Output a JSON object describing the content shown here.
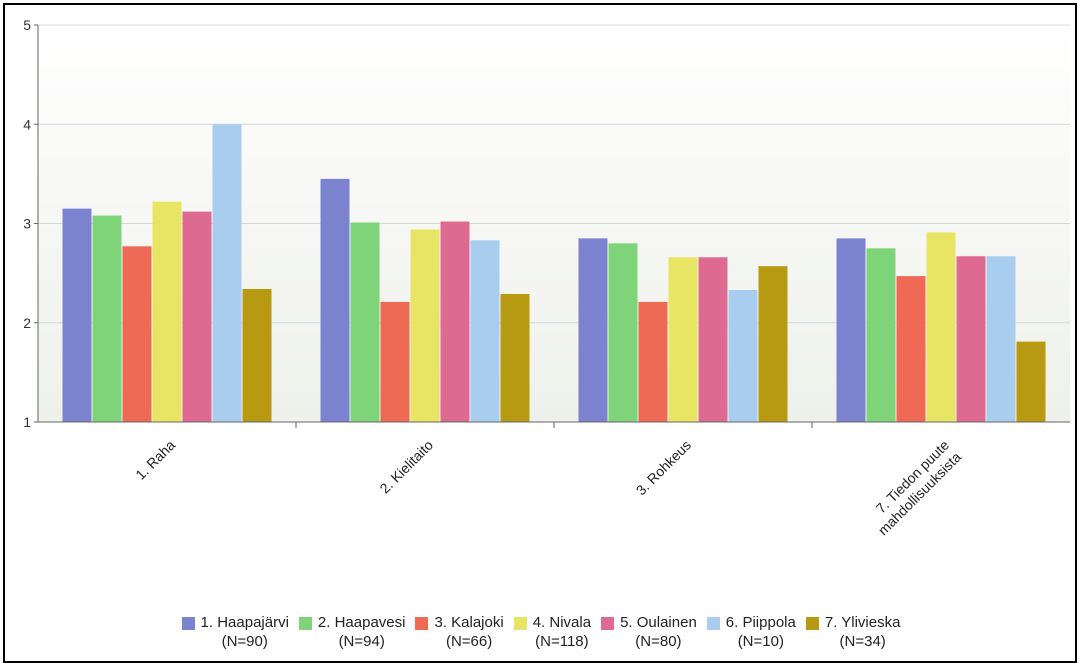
{
  "chart_data": {
    "type": "bar",
    "categories": [
      [
        "1. Raha"
      ],
      [
        "2. Kielitaito"
      ],
      [
        "3. Rohkeus"
      ],
      [
        "7. Tiedon puute",
        "mahdollisuuksista"
      ]
    ],
    "ylim": [
      1,
      5
    ],
    "yticks": [
      1,
      2,
      3,
      4,
      5
    ],
    "grid": true,
    "legend_position": "bottom",
    "series": [
      {
        "name": "1. Haapajärvi",
        "n": "(N=90)",
        "color": "#7b83cf",
        "values": [
          3.15,
          3.45,
          2.85,
          2.85
        ]
      },
      {
        "name": "2. Haapavesi",
        "n": "(N=94)",
        "color": "#7fd47a",
        "values": [
          3.08,
          3.01,
          2.8,
          2.75
        ]
      },
      {
        "name": "3. Kalajoki",
        "n": "(N=66)",
        "color": "#ee6a55",
        "values": [
          2.77,
          2.21,
          2.21,
          2.47
        ]
      },
      {
        "name": "4. Nivala",
        "n": "(N=118)",
        "color": "#e9e564",
        "values": [
          3.22,
          2.94,
          2.66,
          2.91
        ]
      },
      {
        "name": "5. Oulainen",
        "n": "(N=80)",
        "color": "#df6a91",
        "values": [
          3.12,
          3.02,
          2.66,
          2.67
        ]
      },
      {
        "name": "6. Piippola",
        "n": "(N=10)",
        "color": "#a8cdee",
        "values": [
          4.0,
          2.83,
          2.33,
          2.67
        ]
      },
      {
        "name": "7. Ylivieska",
        "n": "(N=34)",
        "color": "#b79a12",
        "values": [
          2.34,
          2.29,
          2.57,
          1.81
        ]
      }
    ]
  }
}
